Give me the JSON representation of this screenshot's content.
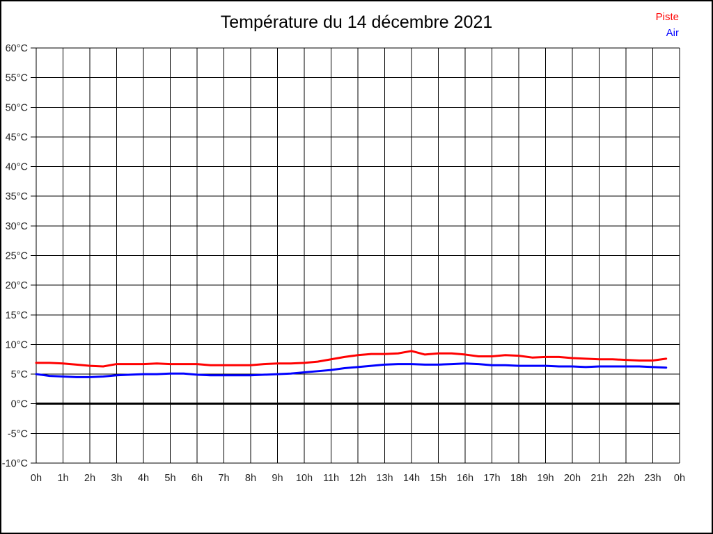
{
  "page": {
    "background": "#ffffff",
    "border_color": "#000000"
  },
  "chart_data": {
    "type": "line",
    "title": "Température du 14 décembre 2021",
    "xlabel": "",
    "ylabel": "",
    "xlim": [
      0,
      24
    ],
    "ylim": [
      -10,
      60
    ],
    "grid": true,
    "grid_color": "#000000",
    "axis_label_color": "#222222",
    "line_width": 3,
    "legend_position": "top-right",
    "zero_line": {
      "value": 0,
      "color": "#000000",
      "width": 3
    },
    "x_ticks": [
      {
        "value": 0,
        "label": "0h"
      },
      {
        "value": 1,
        "label": "1h"
      },
      {
        "value": 2,
        "label": "2h"
      },
      {
        "value": 3,
        "label": "3h"
      },
      {
        "value": 4,
        "label": "4h"
      },
      {
        "value": 5,
        "label": "5h"
      },
      {
        "value": 6,
        "label": "6h"
      },
      {
        "value": 7,
        "label": "7h"
      },
      {
        "value": 8,
        "label": "8h"
      },
      {
        "value": 9,
        "label": "9h"
      },
      {
        "value": 10,
        "label": "10h"
      },
      {
        "value": 11,
        "label": "11h"
      },
      {
        "value": 12,
        "label": "12h"
      },
      {
        "value": 13,
        "label": "13h"
      },
      {
        "value": 14,
        "label": "14h"
      },
      {
        "value": 15,
        "label": "15h"
      },
      {
        "value": 16,
        "label": "16h"
      },
      {
        "value": 17,
        "label": "17h"
      },
      {
        "value": 18,
        "label": "18h"
      },
      {
        "value": 19,
        "label": "19h"
      },
      {
        "value": 20,
        "label": "20h"
      },
      {
        "value": 21,
        "label": "21h"
      },
      {
        "value": 22,
        "label": "22h"
      },
      {
        "value": 23,
        "label": "23h"
      },
      {
        "value": 24,
        "label": "0h"
      }
    ],
    "y_ticks": [
      {
        "value": 60,
        "label": "60°C"
      },
      {
        "value": 55,
        "label": "55°C"
      },
      {
        "value": 50,
        "label": "50°C"
      },
      {
        "value": 45,
        "label": "45°C"
      },
      {
        "value": 40,
        "label": "40°C"
      },
      {
        "value": 35,
        "label": "35°C"
      },
      {
        "value": 30,
        "label": "30°C"
      },
      {
        "value": 25,
        "label": "25°C"
      },
      {
        "value": 20,
        "label": "20°C"
      },
      {
        "value": 15,
        "label": "15°C"
      },
      {
        "value": 10,
        "label": "10°C"
      },
      {
        "value": 5,
        "label": "5°C"
      },
      {
        "value": 0,
        "label": "0°C"
      },
      {
        "value": -5,
        "label": "-5°C"
      },
      {
        "value": -10,
        "label": "-10°C"
      }
    ],
    "series": [
      {
        "name": "Piste",
        "color": "#ff0000",
        "x": [
          0,
          0.5,
          1,
          1.5,
          2,
          2.5,
          3,
          3.5,
          4,
          4.5,
          5,
          5.5,
          6,
          6.5,
          7,
          7.5,
          8,
          8.5,
          9,
          9.5,
          10,
          10.5,
          11,
          11.5,
          12,
          12.5,
          13,
          13.5,
          14,
          14.5,
          15,
          15.5,
          16,
          16.5,
          17,
          17.5,
          18,
          18.5,
          19,
          19.5,
          20,
          20.5,
          21,
          21.5,
          22,
          22.5,
          23,
          23.5
        ],
        "values": [
          6.9,
          6.9,
          6.8,
          6.6,
          6.4,
          6.3,
          6.7,
          6.7,
          6.7,
          6.8,
          6.7,
          6.7,
          6.7,
          6.5,
          6.5,
          6.5,
          6.5,
          6.7,
          6.8,
          6.8,
          6.9,
          7.1,
          7.5,
          7.9,
          8.2,
          8.4,
          8.4,
          8.5,
          8.9,
          8.3,
          8.5,
          8.5,
          8.3,
          8.0,
          8.0,
          8.2,
          8.1,
          7.8,
          7.9,
          7.9,
          7.7,
          7.6,
          7.5,
          7.5,
          7.4,
          7.3,
          7.3,
          7.6
        ]
      },
      {
        "name": "Air",
        "color": "#0000ff",
        "x": [
          0,
          0.5,
          1,
          1.5,
          2,
          2.5,
          3,
          3.5,
          4,
          4.5,
          5,
          5.5,
          6,
          6.5,
          7,
          7.5,
          8,
          8.5,
          9,
          9.5,
          10,
          10.5,
          11,
          11.5,
          12,
          12.5,
          13,
          13.5,
          14,
          14.5,
          15,
          15.5,
          16,
          16.5,
          17,
          17.5,
          18,
          18.5,
          19,
          19.5,
          20,
          20.5,
          21,
          21.5,
          22,
          22.5,
          23,
          23.5
        ],
        "values": [
          5.0,
          4.7,
          4.6,
          4.5,
          4.5,
          4.6,
          4.8,
          4.9,
          5.0,
          5.0,
          5.1,
          5.1,
          4.9,
          4.8,
          4.8,
          4.8,
          4.8,
          4.9,
          5.0,
          5.1,
          5.3,
          5.5,
          5.7,
          6.0,
          6.2,
          6.4,
          6.6,
          6.7,
          6.7,
          6.6,
          6.6,
          6.7,
          6.8,
          6.7,
          6.5,
          6.5,
          6.4,
          6.4,
          6.4,
          6.3,
          6.3,
          6.2,
          6.3,
          6.3,
          6.3,
          6.3,
          6.2,
          6.1
        ]
      }
    ]
  }
}
